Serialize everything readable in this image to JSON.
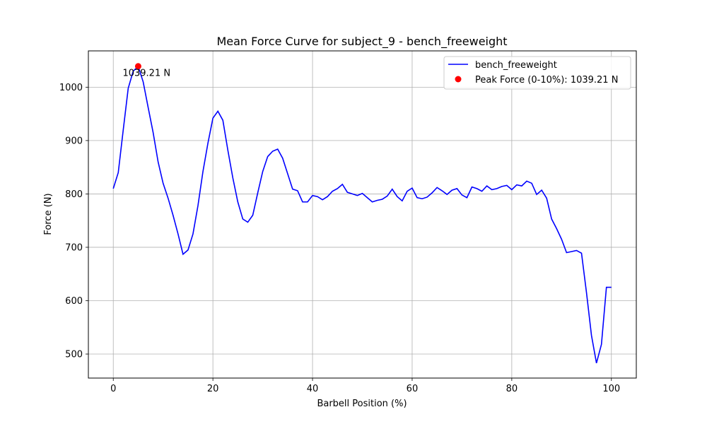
{
  "chart_data": {
    "type": "line",
    "title": "Mean Force Curve for subject_9 - bench_freeweight",
    "xlabel": "Barbell Position (%)",
    "ylabel": "Force (N)",
    "xlim": [
      -5,
      105
    ],
    "ylim": [
      455,
      1068
    ],
    "xticks": [
      0,
      20,
      40,
      60,
      80,
      100
    ],
    "yticks": [
      500,
      600,
      700,
      800,
      900,
      1000
    ],
    "grid": true,
    "legend_position": "top-right",
    "series": [
      {
        "name": "bench_freeweight",
        "color": "#0000ff",
        "x": [
          0,
          1,
          2,
          3,
          4,
          5,
          6,
          7,
          8,
          9,
          10,
          11,
          12,
          13,
          14,
          15,
          16,
          17,
          18,
          19,
          20,
          21,
          22,
          23,
          24,
          25,
          26,
          27,
          28,
          29,
          30,
          31,
          32,
          33,
          34,
          35,
          36,
          37,
          38,
          39,
          40,
          41,
          42,
          43,
          44,
          45,
          46,
          47,
          48,
          49,
          50,
          51,
          52,
          53,
          54,
          55,
          56,
          57,
          58,
          59,
          60,
          61,
          62,
          63,
          64,
          65,
          66,
          67,
          68,
          69,
          70,
          71,
          72,
          73,
          74,
          75,
          76,
          77,
          78,
          79,
          80,
          81,
          82,
          83,
          84,
          85,
          86,
          87,
          88,
          89,
          90,
          91,
          92,
          93,
          94,
          95,
          96,
          97,
          98,
          99,
          100
        ],
        "values": [
          810,
          840,
          920,
          998,
          1030,
          1039,
          1010,
          962,
          915,
          860,
          820,
          792,
          760,
          725,
          687,
          695,
          725,
          778,
          842,
          895,
          942,
          955,
          938,
          882,
          830,
          785,
          753,
          747,
          760,
          802,
          842,
          870,
          880,
          884,
          867,
          838,
          809,
          806,
          785,
          785,
          797,
          795,
          789,
          795,
          805,
          810,
          818,
          803,
          800,
          797,
          801,
          793,
          785,
          788,
          790,
          796,
          809,
          795,
          787,
          805,
          811,
          793,
          791,
          794,
          802,
          812,
          806,
          799,
          807,
          810,
          798,
          793,
          813,
          810,
          805,
          815,
          808,
          810,
          814,
          816,
          808,
          817,
          815,
          824,
          820,
          799,
          807,
          792,
          753,
          735,
          715,
          690,
          692,
          694,
          689,
          615,
          535,
          483,
          518,
          625,
          625
        ]
      }
    ],
    "peak": {
      "name": "Peak Force (0-10%): 1039.21 N",
      "x": 5,
      "y": 1039.21,
      "color": "#ff0000",
      "label": "1039.21 N"
    }
  }
}
